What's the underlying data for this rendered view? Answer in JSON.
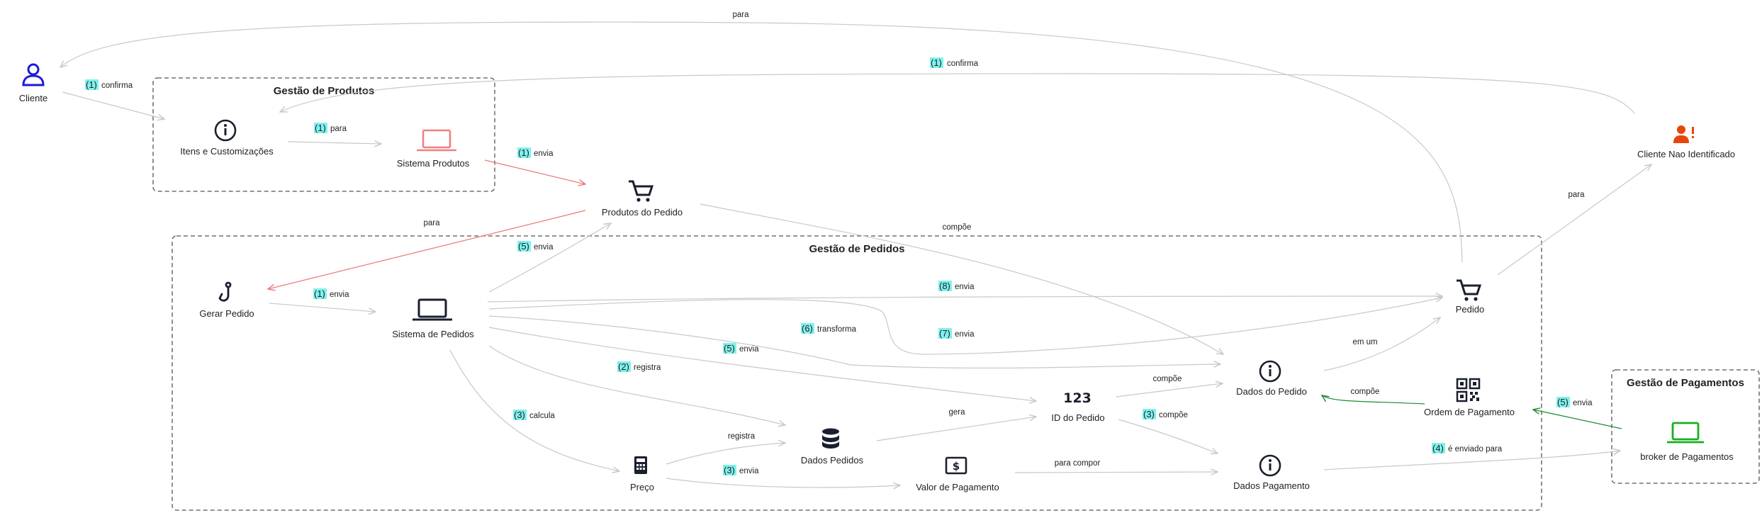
{
  "colors": {
    "edge_default": "#c8c8c8",
    "edge_red": "#e8787a",
    "edge_green": "#1c8a2e",
    "group_border": "#555555",
    "highlight": "#7ff2ee",
    "icon_dark": "#1a1f2e",
    "icon_blue": "#1a1adc",
    "icon_salmon": "#f08080",
    "icon_orange": "#e8450c",
    "icon_green": "#19b01f"
  },
  "groups": {
    "produtos": "Gestão de Produtos",
    "pedidos": "Gestão de Pedidos",
    "pagamentos": "Gestão de Pagamentos"
  },
  "nodes": {
    "cliente": {
      "label": "Cliente",
      "icon": "user-icon"
    },
    "itens": {
      "label": "Itens e Customizações",
      "icon": "info-icon"
    },
    "sistema_produtos": {
      "label": "Sistema Produtos",
      "icon": "laptop-icon"
    },
    "produtos_pedido": {
      "label": "Produtos do Pedido",
      "icon": "cart-icon"
    },
    "cliente_nao_id": {
      "label": "Cliente Nao Identificado",
      "icon": "user-alert-icon"
    },
    "gerar_pedido": {
      "label": "Gerar Pedido",
      "icon": "hook-icon"
    },
    "sistema_pedidos": {
      "label": "Sistema de Pedidos",
      "icon": "laptop-icon"
    },
    "pedido": {
      "label": "Pedido",
      "icon": "cart-icon"
    },
    "dados_pedido": {
      "label": "Dados do Pedido",
      "icon": "info-icon"
    },
    "id_pedido": {
      "label": "ID do Pedido",
      "icon": "numbers-icon"
    },
    "ordem_pagamento": {
      "label": "Ordem de Pagamento",
      "icon": "qr-code-icon"
    },
    "dados_pedidos_db": {
      "label": "Dados Pedidos",
      "icon": "database-icon"
    },
    "preco": {
      "label": "Preço",
      "icon": "calculator-icon"
    },
    "valor_pagamento": {
      "label": "Valor de Pagamento",
      "icon": "money-icon"
    },
    "dados_pagamento": {
      "label": "Dados Pagamento",
      "icon": "info-icon"
    },
    "broker": {
      "label": "broker de Pagamentos",
      "icon": "laptop-icon"
    }
  },
  "edges": {
    "cliente_itens": {
      "num": "(1)",
      "text": "confirma"
    },
    "itens_sistema": {
      "num": "(1)",
      "text": "para"
    },
    "sistema_produtos_envia": {
      "num": "(1)",
      "text": "envia"
    },
    "nao_id_confirma": {
      "num": "(1)",
      "text": "confirma"
    },
    "pedido_cliente": {
      "num": "",
      "text": "para"
    },
    "produtos_gerar": {
      "num": "",
      "text": "para"
    },
    "produtos_dados": {
      "num": "",
      "text": "compõe"
    },
    "pedido_nao_id": {
      "num": "",
      "text": "para"
    },
    "gerar_sistema": {
      "num": "(1)",
      "text": "envia"
    },
    "sistema_produtos_pedido": {
      "num": "(5)",
      "text": "envia"
    },
    "sistema_pedido_8": {
      "num": "(8)",
      "text": "envia"
    },
    "sistema_dados_6": {
      "num": "(6)",
      "text": "transforma"
    },
    "sistema_pedido_7": {
      "num": "(7)",
      "text": "envia"
    },
    "sistema_id_5": {
      "num": "(5)",
      "text": "envia"
    },
    "sistema_db_2": {
      "num": "(2)",
      "text": "registra"
    },
    "sistema_preco_3": {
      "num": "(3)",
      "text": "calcula"
    },
    "dados_pedido_pedido": {
      "num": "",
      "text": "em um"
    },
    "id_dados_compoe": {
      "num": "",
      "text": "compõe"
    },
    "ordem_dados_compoe": {
      "num": "",
      "text": "compõe"
    },
    "db_id_gera": {
      "num": "",
      "text": "gera"
    },
    "id_pagamento_3": {
      "num": "(3)",
      "text": "compõe"
    },
    "preco_db_registra": {
      "num": "",
      "text": "registra"
    },
    "preco_valor_3": {
      "num": "(3)",
      "text": "envia"
    },
    "valor_dados_compor": {
      "num": "",
      "text": "para compor"
    },
    "pagamento_broker_4": {
      "num": "(4)",
      "text": "é enviado para"
    },
    "broker_ordem_5": {
      "num": "(5)",
      "text": "envia"
    }
  }
}
